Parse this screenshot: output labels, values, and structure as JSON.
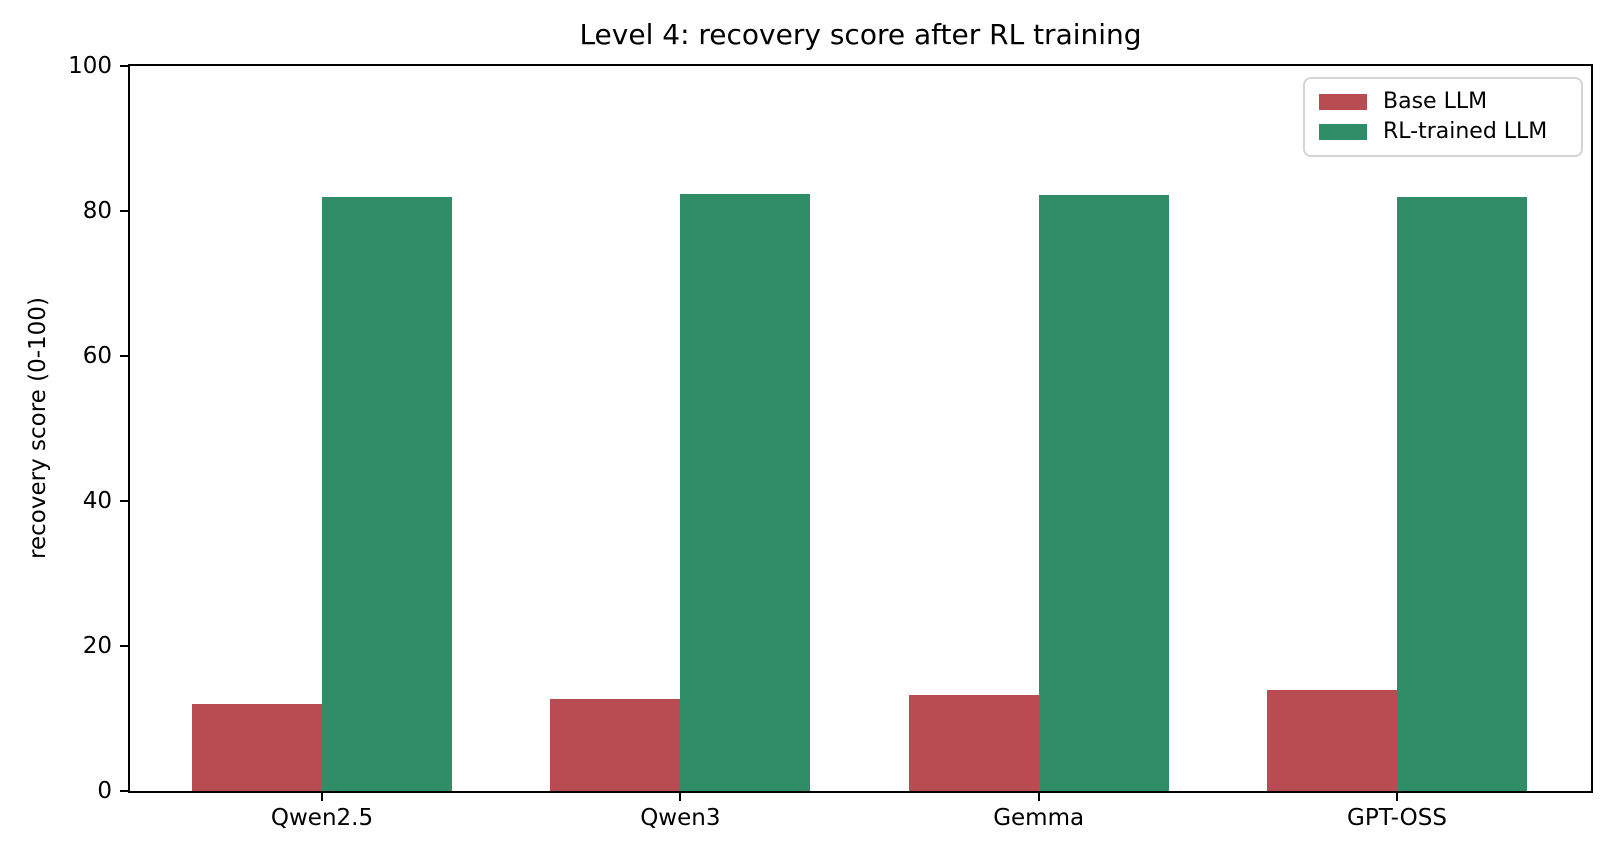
{
  "chart_data": {
    "type": "bar",
    "title": "Level 4: recovery score after RL training",
    "xlabel": "",
    "ylabel": "recovery score (0-100)",
    "categories": [
      "Qwen2.5",
      "Qwen3",
      "Gemma",
      "GPT-OSS"
    ],
    "series": [
      {
        "name": "Base LLM",
        "color": "#b94b52",
        "values": [
          12.0,
          12.7,
          13.2,
          14.0
        ]
      },
      {
        "name": "RL-trained LLM",
        "color": "#2f8e68",
        "values": [
          81.9,
          82.4,
          82.2,
          82.0
        ]
      }
    ],
    "ylim": [
      0,
      100
    ],
    "yticks": [
      0,
      20,
      40,
      60,
      80,
      100
    ],
    "grid": false,
    "legend_position": "upper right",
    "colors": {
      "axis": "#000000",
      "background": "#ffffff",
      "legend_border": "#d4d4d4"
    }
  }
}
